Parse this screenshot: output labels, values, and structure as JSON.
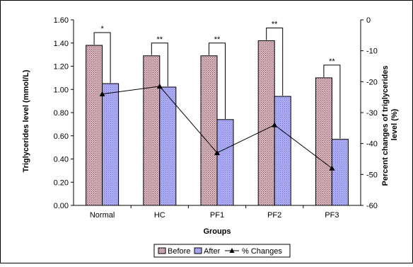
{
  "chart_data": {
    "type": "bar",
    "categories": [
      "Normal",
      "HC",
      "PF1",
      "PF2",
      "PF3"
    ],
    "series": [
      {
        "name": "Before",
        "values": [
          1.38,
          1.29,
          1.29,
          1.42,
          1.1
        ],
        "color": "#c9a0a8",
        "pattern": "dotted"
      },
      {
        "name": "After",
        "values": [
          1.05,
          1.02,
          0.74,
          0.94,
          0.57
        ],
        "color": "#a0a0f0",
        "pattern": "dotted"
      }
    ],
    "line_series": {
      "name": "% Changes",
      "values": [
        -24,
        -21.5,
        -43,
        -34,
        -48
      ],
      "axis": "right",
      "color": "#000000",
      "marker": "triangle"
    },
    "significance": [
      "*",
      "**",
      "**",
      "**",
      "**"
    ],
    "xlabel": "Groups",
    "ylabel": "Triglycerides level (mmol/L)",
    "y2label_lines": [
      "Percent changes of triglycerides",
      "level (%)"
    ],
    "ylim": [
      0,
      1.6
    ],
    "yticks": [
      "0.00",
      "0.20",
      "0.40",
      "0.60",
      "0.80",
      "1.00",
      "1.20",
      "1.40",
      "1.60"
    ],
    "y2lim": [
      -60,
      0
    ],
    "y2ticks": [
      "0",
      "-10",
      "-20",
      "-30",
      "-40",
      "-50",
      "-60"
    ],
    "legend_position": "bottom-center",
    "grid": false
  }
}
